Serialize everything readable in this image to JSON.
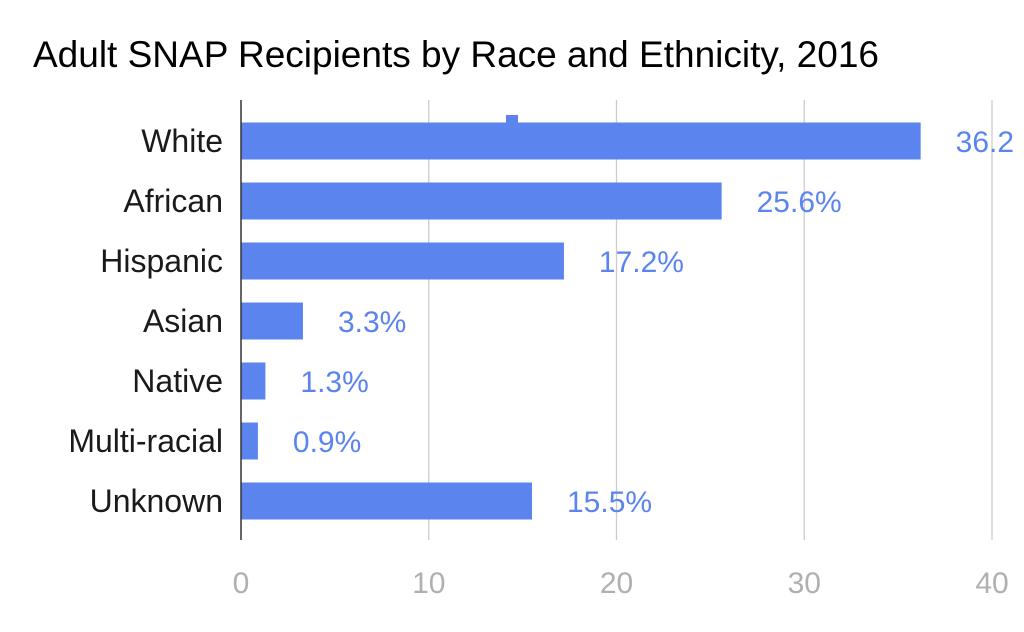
{
  "chart_data": {
    "type": "bar",
    "orientation": "horizontal",
    "title": "Adult SNAP Recipients by Race and Ethnicity, 2016",
    "categories": [
      "White",
      "African",
      "Hispanic",
      "Asian",
      "Native",
      "Multi-racial",
      "Unknown"
    ],
    "values": [
      36.2,
      25.6,
      17.2,
      3.3,
      1.3,
      0.9,
      15.5
    ],
    "value_labels": [
      "36.2",
      "25.6%",
      "17.2%",
      "3.3%",
      "1.3%",
      "0.9%",
      "15.5%"
    ],
    "xlim": [
      0,
      40
    ],
    "x_ticks": [
      0,
      10,
      20,
      30,
      40
    ],
    "x_tick_labels": [
      "0",
      "10",
      "20",
      "30",
      "40"
    ],
    "grid": true,
    "legend": "none",
    "colors": {
      "bar": "#5b84ee",
      "value_label": "#5b84ee",
      "tick_label": "#b0b0b0",
      "grid": "#cccccc",
      "axis": "#333333"
    }
  }
}
